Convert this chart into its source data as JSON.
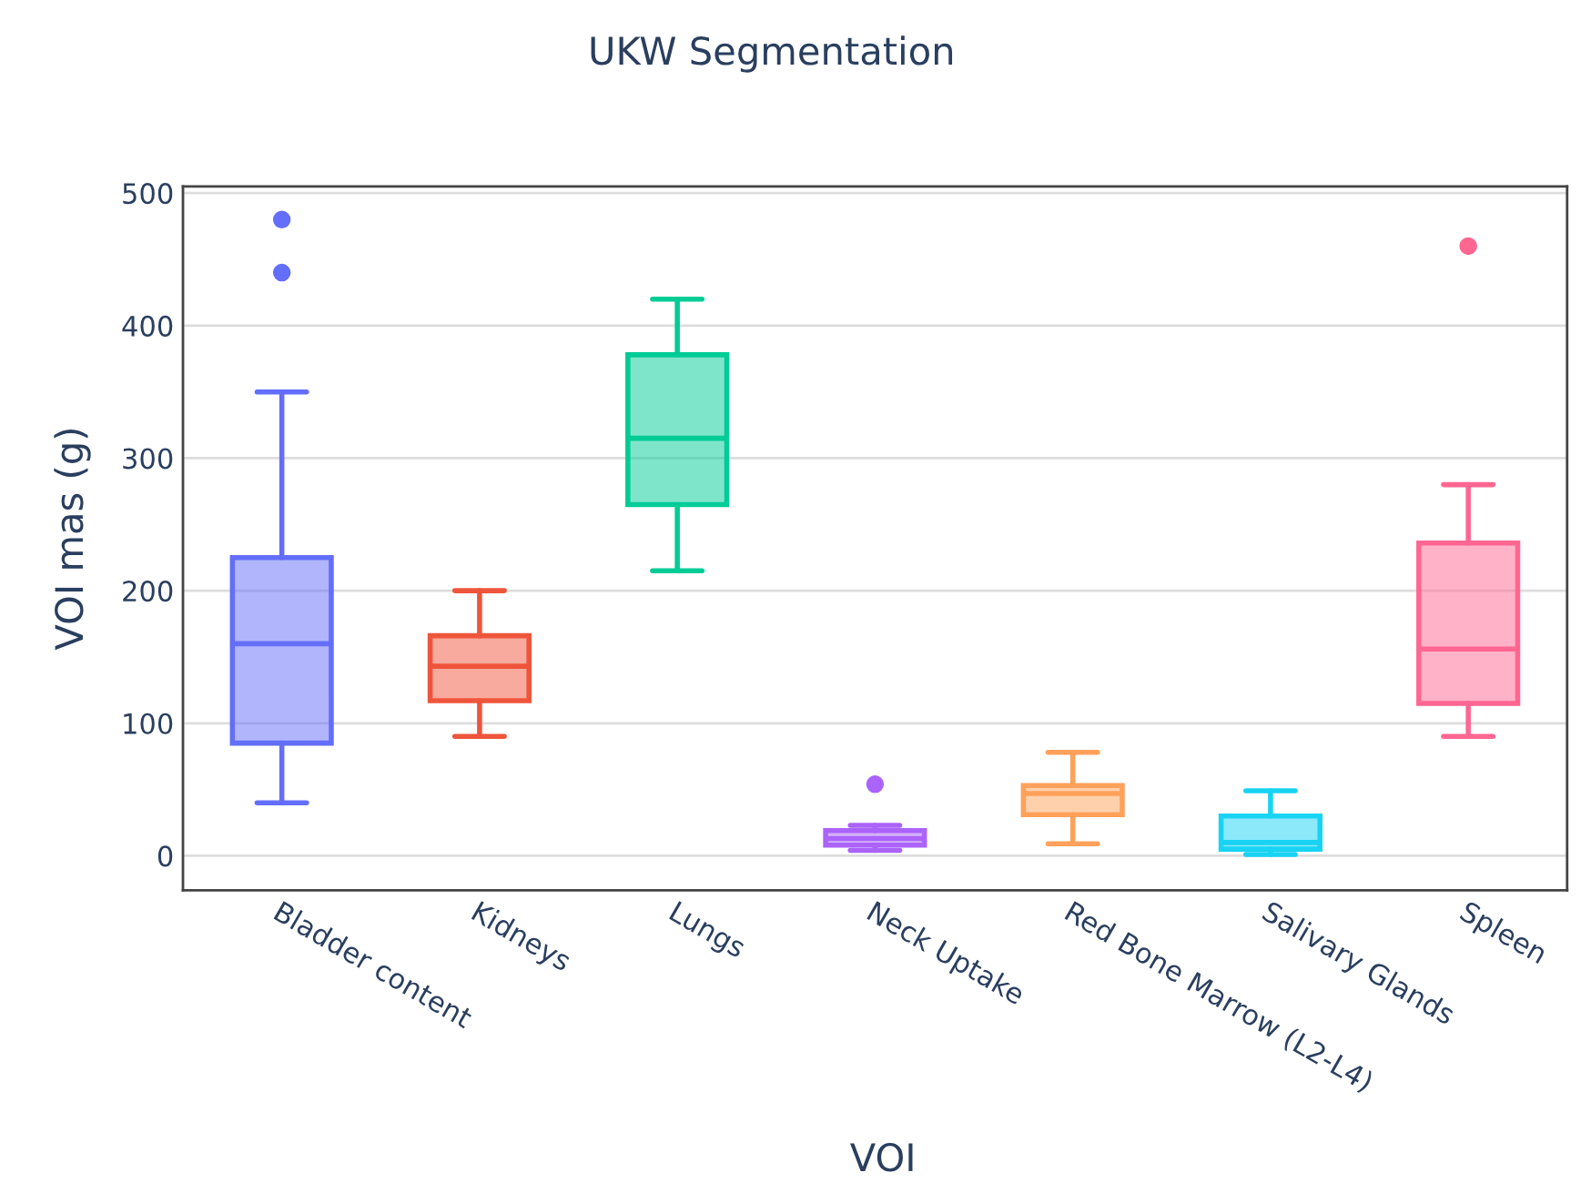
{
  "chart_data": {
    "type": "box",
    "title": "UKW Segmentation",
    "xlabel": "VOI",
    "ylabel": "VOI mas (g)",
    "categories": [
      "Bladder content",
      "Kidneys",
      "Lungs",
      "Neck Uptake",
      "Red Bone Marrow (L2-L4)",
      "Salivary Glands",
      "Spleen"
    ],
    "colors": [
      "#636efa",
      "#ef553b",
      "#00cc96",
      "#ab63fa",
      "#ffa15a",
      "#19d3f3",
      "#ff6692"
    ],
    "boxes": [
      {
        "low": 40,
        "q1": 85,
        "median": 160,
        "q3": 225,
        "high": 350,
        "outliers": [
          440,
          480
        ]
      },
      {
        "low": 90,
        "q1": 117,
        "median": 143,
        "q3": 166,
        "high": 200
      },
      {
        "low": 215,
        "q1": 265,
        "median": 315,
        "q3": 378,
        "high": 420
      },
      {
        "low": 4,
        "q1": 8,
        "median": 13,
        "q3": 19,
        "high": 23,
        "outliers": [
          54
        ]
      },
      {
        "low": 9,
        "q1": 31,
        "median": 47,
        "q3": 53,
        "high": 78
      },
      {
        "low": 1,
        "q1": 5,
        "median": 10,
        "q3": 30,
        "high": 49
      },
      {
        "low": 90,
        "q1": 115,
        "median": 156,
        "q3": 236,
        "high": 280,
        "outliers": [
          460
        ]
      }
    ],
    "ylim": [
      -26,
      505
    ],
    "yticks": [
      0,
      100,
      200,
      300,
      400,
      500
    ],
    "grid": "y"
  }
}
